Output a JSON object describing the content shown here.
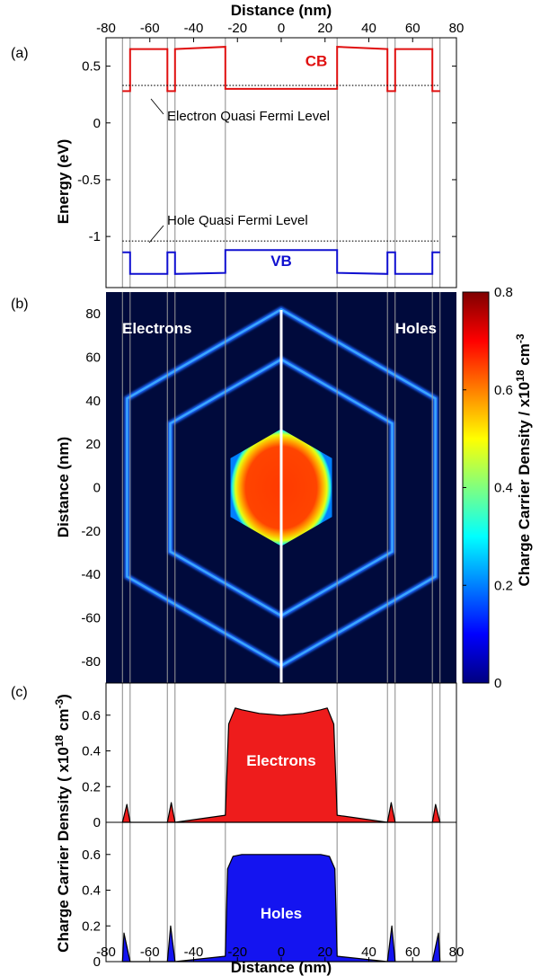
{
  "colors": {
    "cb": "#e01010",
    "vb": "#1010d0",
    "electrons_fill": "#ee1c1c",
    "holes_fill": "#1414f0",
    "map_bg": "#000a3c",
    "boundary_lines": "#888888"
  },
  "figure": {
    "top_xlabel": "Distance (nm)",
    "bottom_xlabel": "Distance (nm)"
  },
  "chart_data": [
    {
      "id": "a",
      "type": "line",
      "panel_label": "(a)",
      "ylabel": "Energy (eV)",
      "xlabel": "Distance (nm)",
      "xlim": [
        -80,
        80
      ],
      "ylim": [
        -1.45,
        0.75
      ],
      "xticks": [
        -80,
        -60,
        -40,
        -20,
        0,
        20,
        40,
        60,
        80
      ],
      "xtick_labels": [
        "-80",
        "-60",
        "-40",
        "-20",
        "0",
        "20",
        "40",
        "60",
        "80"
      ],
      "yticks": [
        0.5,
        0,
        -0.5,
        -1
      ],
      "ytick_labels": [
        "0.5",
        "0",
        "-0.5",
        "-1"
      ],
      "boundaries_nm": [
        -72.5,
        -69,
        -52,
        -48.5,
        -25.5,
        25.5,
        48.5,
        52,
        69,
        72.5
      ],
      "series": [
        {
          "name": "CB",
          "x": [
            -72.5,
            -72.5,
            -69,
            -69,
            -52,
            -52,
            -48.5,
            -48.5,
            -25.5,
            -25.5,
            25.5,
            25.5,
            48.5,
            48.5,
            52,
            52,
            69,
            69,
            72.5
          ],
          "y": [
            0.28,
            0.28,
            0.28,
            0.65,
            0.65,
            0.28,
            0.28,
            0.65,
            0.67,
            0.3,
            0.3,
            0.67,
            0.65,
            0.28,
            0.28,
            0.65,
            0.65,
            0.28,
            0.28
          ]
        },
        {
          "name": "VB",
          "x": [
            -72.5,
            -72.5,
            -69,
            -69,
            -52,
            -52,
            -48.5,
            -48.5,
            -25.5,
            -25.5,
            25.5,
            25.5,
            48.5,
            48.5,
            52,
            52,
            69,
            69,
            72.5
          ],
          "y": [
            -1.14,
            -1.14,
            -1.14,
            -1.33,
            -1.33,
            -1.14,
            -1.14,
            -1.33,
            -1.32,
            -1.12,
            -1.12,
            -1.32,
            -1.33,
            -1.14,
            -1.14,
            -1.33,
            -1.33,
            -1.14,
            -1.14
          ]
        },
        {
          "name": "Electron Quasi Fermi Level",
          "x": [
            -72.5,
            72.5
          ],
          "y": [
            0.33,
            0.33
          ]
        },
        {
          "name": "Hole Quasi Fermi Level",
          "x": [
            -72.5,
            72.5
          ],
          "y": [
            -1.04,
            -1.04
          ]
        }
      ],
      "labels": {
        "cb": "CB",
        "vb": "VB",
        "electron_qfl": "Electron Quasi Fermi Level",
        "hole_qfl": "Hole Quasi Fermi Level"
      }
    },
    {
      "id": "b",
      "type": "heatmap",
      "panel_label": "(b)",
      "ylabel": "Distance (nm)",
      "xlim": [
        -80,
        80
      ],
      "ylim": [
        -90,
        90
      ],
      "yticks": [
        80,
        60,
        40,
        20,
        0,
        -20,
        -40,
        -60,
        -80
      ],
      "ytick_labels": [
        "80",
        "60",
        "40",
        "20",
        "0",
        "-20",
        "-40",
        "-60",
        "-80"
      ],
      "left_label": "Electrons",
      "right_label": "Holes",
      "hexagon_circumradii_nm": [
        82,
        59,
        27
      ],
      "shell_densities": [
        0.12,
        0.12
      ],
      "core_density": 0.63,
      "colorbar": {
        "label": "Charge Carrier Density / x10",
        "exponent": "18",
        "unit": " cm",
        "unit_exponent": "-3",
        "range": [
          0,
          0.8
        ],
        "ticks": [
          0,
          0.2,
          0.4,
          0.6,
          0.8
        ],
        "tick_labels": [
          "0",
          "0.2",
          "0.4",
          "0.6",
          "0.8"
        ]
      }
    },
    {
      "id": "c_electrons",
      "type": "area",
      "panel_label": "(c)",
      "inner_label": "Electrons",
      "xlim": [
        -80,
        80
      ],
      "ylim": [
        0,
        0.78
      ],
      "yticks": [
        0,
        0.2,
        0.4,
        0.6
      ],
      "ytick_labels": [
        "0",
        "0.2",
        "0.4",
        "0.6"
      ],
      "series": [
        {
          "name": "Electrons",
          "x": [
            -72.5,
            -70.5,
            -69,
            -52,
            -50.2,
            -48.5,
            -25.5,
            -24,
            -21,
            -18,
            -10,
            0,
            10,
            18,
            21,
            24,
            25.5,
            48.5,
            50.2,
            52,
            69,
            70.5,
            72.5
          ],
          "y": [
            0,
            0.1,
            0,
            0,
            0.11,
            0,
            0.04,
            0.55,
            0.64,
            0.63,
            0.61,
            0.6,
            0.61,
            0.63,
            0.64,
            0.55,
            0.04,
            0,
            0.11,
            0,
            0,
            0.1,
            0
          ]
        }
      ]
    },
    {
      "id": "c_holes",
      "type": "area",
      "inner_label": "Holes",
      "xlim": [
        -80,
        80
      ],
      "ylim": [
        0,
        0.78
      ],
      "xticks": [
        -80,
        -60,
        -40,
        -20,
        0,
        20,
        40,
        60,
        80
      ],
      "xtick_labels": [
        "-80",
        "-60",
        "-40",
        "-20",
        "0",
        "20",
        "40",
        "60",
        "80"
      ],
      "yticks": [
        0,
        0.2,
        0.4,
        0.6
      ],
      "ytick_labels": [
        "0",
        "0.2",
        "0.4",
        "0.6"
      ],
      "xlabel": "Distance (nm)",
      "series": [
        {
          "name": "Holes",
          "x": [
            -72.5,
            -71.8,
            -69,
            -52,
            -50.5,
            -48.5,
            -25.5,
            -24.5,
            -22,
            -18,
            -10,
            0,
            10,
            18,
            22,
            24.5,
            25.5,
            48.5,
            50.5,
            52,
            69,
            71.8,
            72.5
          ],
          "y": [
            0,
            0.16,
            0,
            0,
            0.2,
            0,
            0.03,
            0.52,
            0.59,
            0.6,
            0.6,
            0.6,
            0.6,
            0.6,
            0.59,
            0.52,
            0.03,
            0,
            0.2,
            0,
            0,
            0.16,
            0
          ]
        }
      ]
    }
  ],
  "shared_ylabel": {
    "text": "Charge Carrier Density  ( x10",
    "exponent": "18",
    "unit": " cm",
    "unit_exponent": "-3",
    "close": ")"
  }
}
